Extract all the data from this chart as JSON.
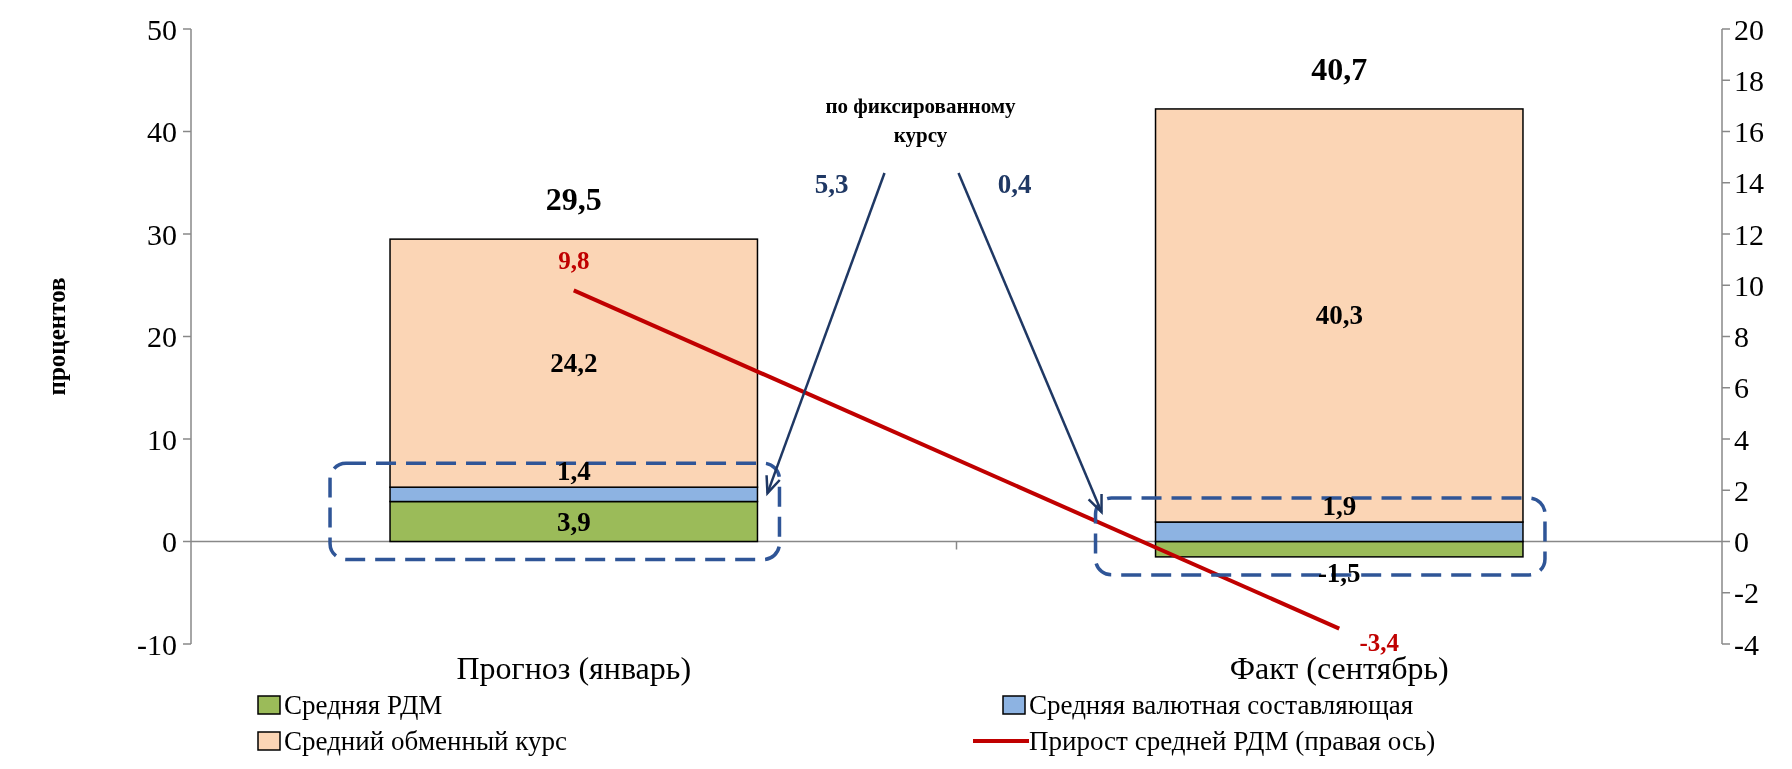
{
  "chart_data": {
    "type": "bar",
    "stacked": true,
    "categories": [
      "Прогноз (январь)",
      "Факт (сентябрь)"
    ],
    "series": [
      {
        "name": "Средняя РДМ",
        "color": "#9bbb59",
        "values": [
          3.9,
          -1.5
        ],
        "value_labels": [
          "3,9",
          "-1,5"
        ]
      },
      {
        "name": "Средняя валютная составляющая",
        "color": "#8db3e2",
        "values": [
          1.4,
          1.9
        ],
        "value_labels": [
          "1,4",
          "1,9"
        ]
      },
      {
        "name": "Средний обменный курс",
        "color": "#fbd5b5",
        "values": [
          24.2,
          40.3
        ],
        "value_labels": [
          "24,2",
          "40,3"
        ]
      },
      {
        "name": "Прирост средней РДМ  (правая ось)",
        "type": "line",
        "axis": "y2",
        "color": "#c00000",
        "values": [
          9.8,
          -3.4
        ],
        "value_labels": [
          "9,8",
          "-3,4"
        ]
      }
    ],
    "totals": [
      "29,5",
      "40,7"
    ],
    "ylabel": "процентов",
    "ylim": [
      -10,
      50
    ],
    "yticks": [
      -10,
      0,
      10,
      20,
      30,
      40,
      50
    ],
    "y2lim": [
      -4,
      20
    ],
    "y2ticks": [
      -4,
      -2,
      0,
      2,
      4,
      6,
      8,
      10,
      12,
      14,
      16,
      18,
      20
    ],
    "annotations": [
      "по фиксированному курсу",
      "5,3",
      "0,4"
    ],
    "legend": "bottom"
  }
}
